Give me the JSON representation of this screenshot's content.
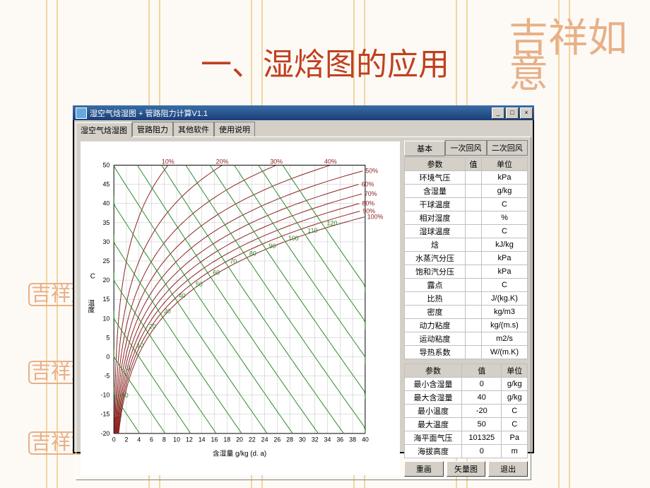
{
  "page_title": "一、湿焓图的应用",
  "seals": {
    "big": "吉祥如意",
    "s1": "吉祥如意",
    "s2": "吉祥如意",
    "s3": "吉祥如意"
  },
  "window": {
    "title": "湿空气焓湿图 + 管路阻力计算V1.1",
    "tabs": [
      "湿空气焓湿图",
      "管路阻力",
      "其他软件",
      "使用说明"
    ],
    "subtabs": [
      "基本",
      "一次回风",
      "二次回风"
    ],
    "buttons": {
      "redraw": "重画",
      "vector": "矢量图",
      "exit": "退出"
    },
    "winbtns": {
      "min": "_",
      "max": "□",
      "close": "×"
    }
  },
  "chart": {
    "x_label": "含湿量  g/kg (d. a)",
    "y_label_top": "C",
    "y_label_main": "温度",
    "x_min": 0,
    "x_max": 40,
    "x_step": 2,
    "y_min": -20,
    "y_max": 50,
    "y_step": 5,
    "rh_curves": [
      10,
      20,
      30,
      40,
      50,
      60,
      70,
      80,
      90,
      100
    ],
    "rh_label_suffix": "%",
    "enthalpy_lines": [
      -10,
      0,
      10,
      20,
      30,
      40,
      50,
      60,
      70,
      80,
      90,
      100,
      110,
      120
    ],
    "colors": {
      "grid": "#c0c0c0",
      "rh": "#8b2020",
      "enth": "#2a8a2a",
      "axis": "#000000",
      "bg": "#ffffff"
    }
  },
  "params_table": {
    "headers": [
      "参数",
      "值",
      "单位"
    ],
    "rows": [
      {
        "name": "环境气压",
        "val": "",
        "unit": "kPa"
      },
      {
        "name": "含湿量",
        "val": "",
        "unit": "g/kg"
      },
      {
        "name": "干球温度",
        "val": "",
        "unit": "C"
      },
      {
        "name": "相对湿度",
        "val": "",
        "unit": "%"
      },
      {
        "name": "湿球温度",
        "val": "",
        "unit": "C"
      },
      {
        "name": "焓",
        "val": "",
        "unit": "kJ/kg"
      },
      {
        "name": "水蒸汽分压",
        "val": "",
        "unit": "kPa"
      },
      {
        "name": "饱和汽分压",
        "val": "",
        "unit": "kPa"
      },
      {
        "name": "露点",
        "val": "",
        "unit": "C"
      },
      {
        "name": "比热",
        "val": "",
        "unit": "J/(kg.K)"
      },
      {
        "name": "密度",
        "val": "",
        "unit": "kg/m3"
      },
      {
        "name": "动力粘度",
        "val": "",
        "unit": "kg/(m.s)"
      },
      {
        "name": "运动粘度",
        "val": "",
        "unit": "m2/s"
      },
      {
        "name": "导热系数",
        "val": "",
        "unit": "W/(m.K)"
      }
    ]
  },
  "range_table": {
    "headers": [
      "参数",
      "值",
      "单位"
    ],
    "rows": [
      {
        "name": "最小含湿量",
        "val": "0",
        "unit": "g/kg"
      },
      {
        "name": "最大含湿量",
        "val": "40",
        "unit": "g/kg"
      },
      {
        "name": "最小温度",
        "val": "-20",
        "unit": "C"
      },
      {
        "name": "最大温度",
        "val": "50",
        "unit": "C"
      },
      {
        "name": "海平面气压",
        "val": "101325",
        "unit": "Pa"
      },
      {
        "name": "海拔高度",
        "val": "0",
        "unit": "m"
      }
    ]
  }
}
